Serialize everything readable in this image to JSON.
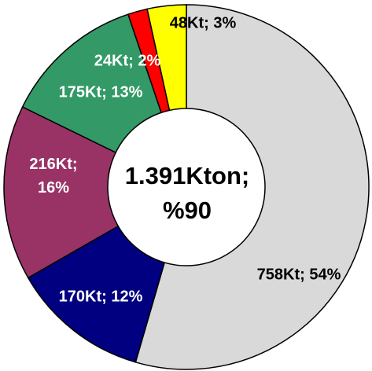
{
  "chart_data": {
    "type": "donut",
    "categories": [
      null,
      null,
      null,
      null,
      null,
      null
    ],
    "values": [
      758,
      170,
      216,
      175,
      24,
      48
    ],
    "value_labels": [
      "758Kt; 54%",
      "170Kt; 12%",
      "216Kt; 16%",
      "175Kt; 13%",
      "24Kt; 2%",
      "48Kt; 3%"
    ],
    "colors": [
      "#d9d9d9",
      "#000080",
      "#993366",
      "#339966",
      "#ff0000",
      "#ffff00"
    ],
    "center_text": [
      "1.391Kton;",
      "%90"
    ]
  }
}
